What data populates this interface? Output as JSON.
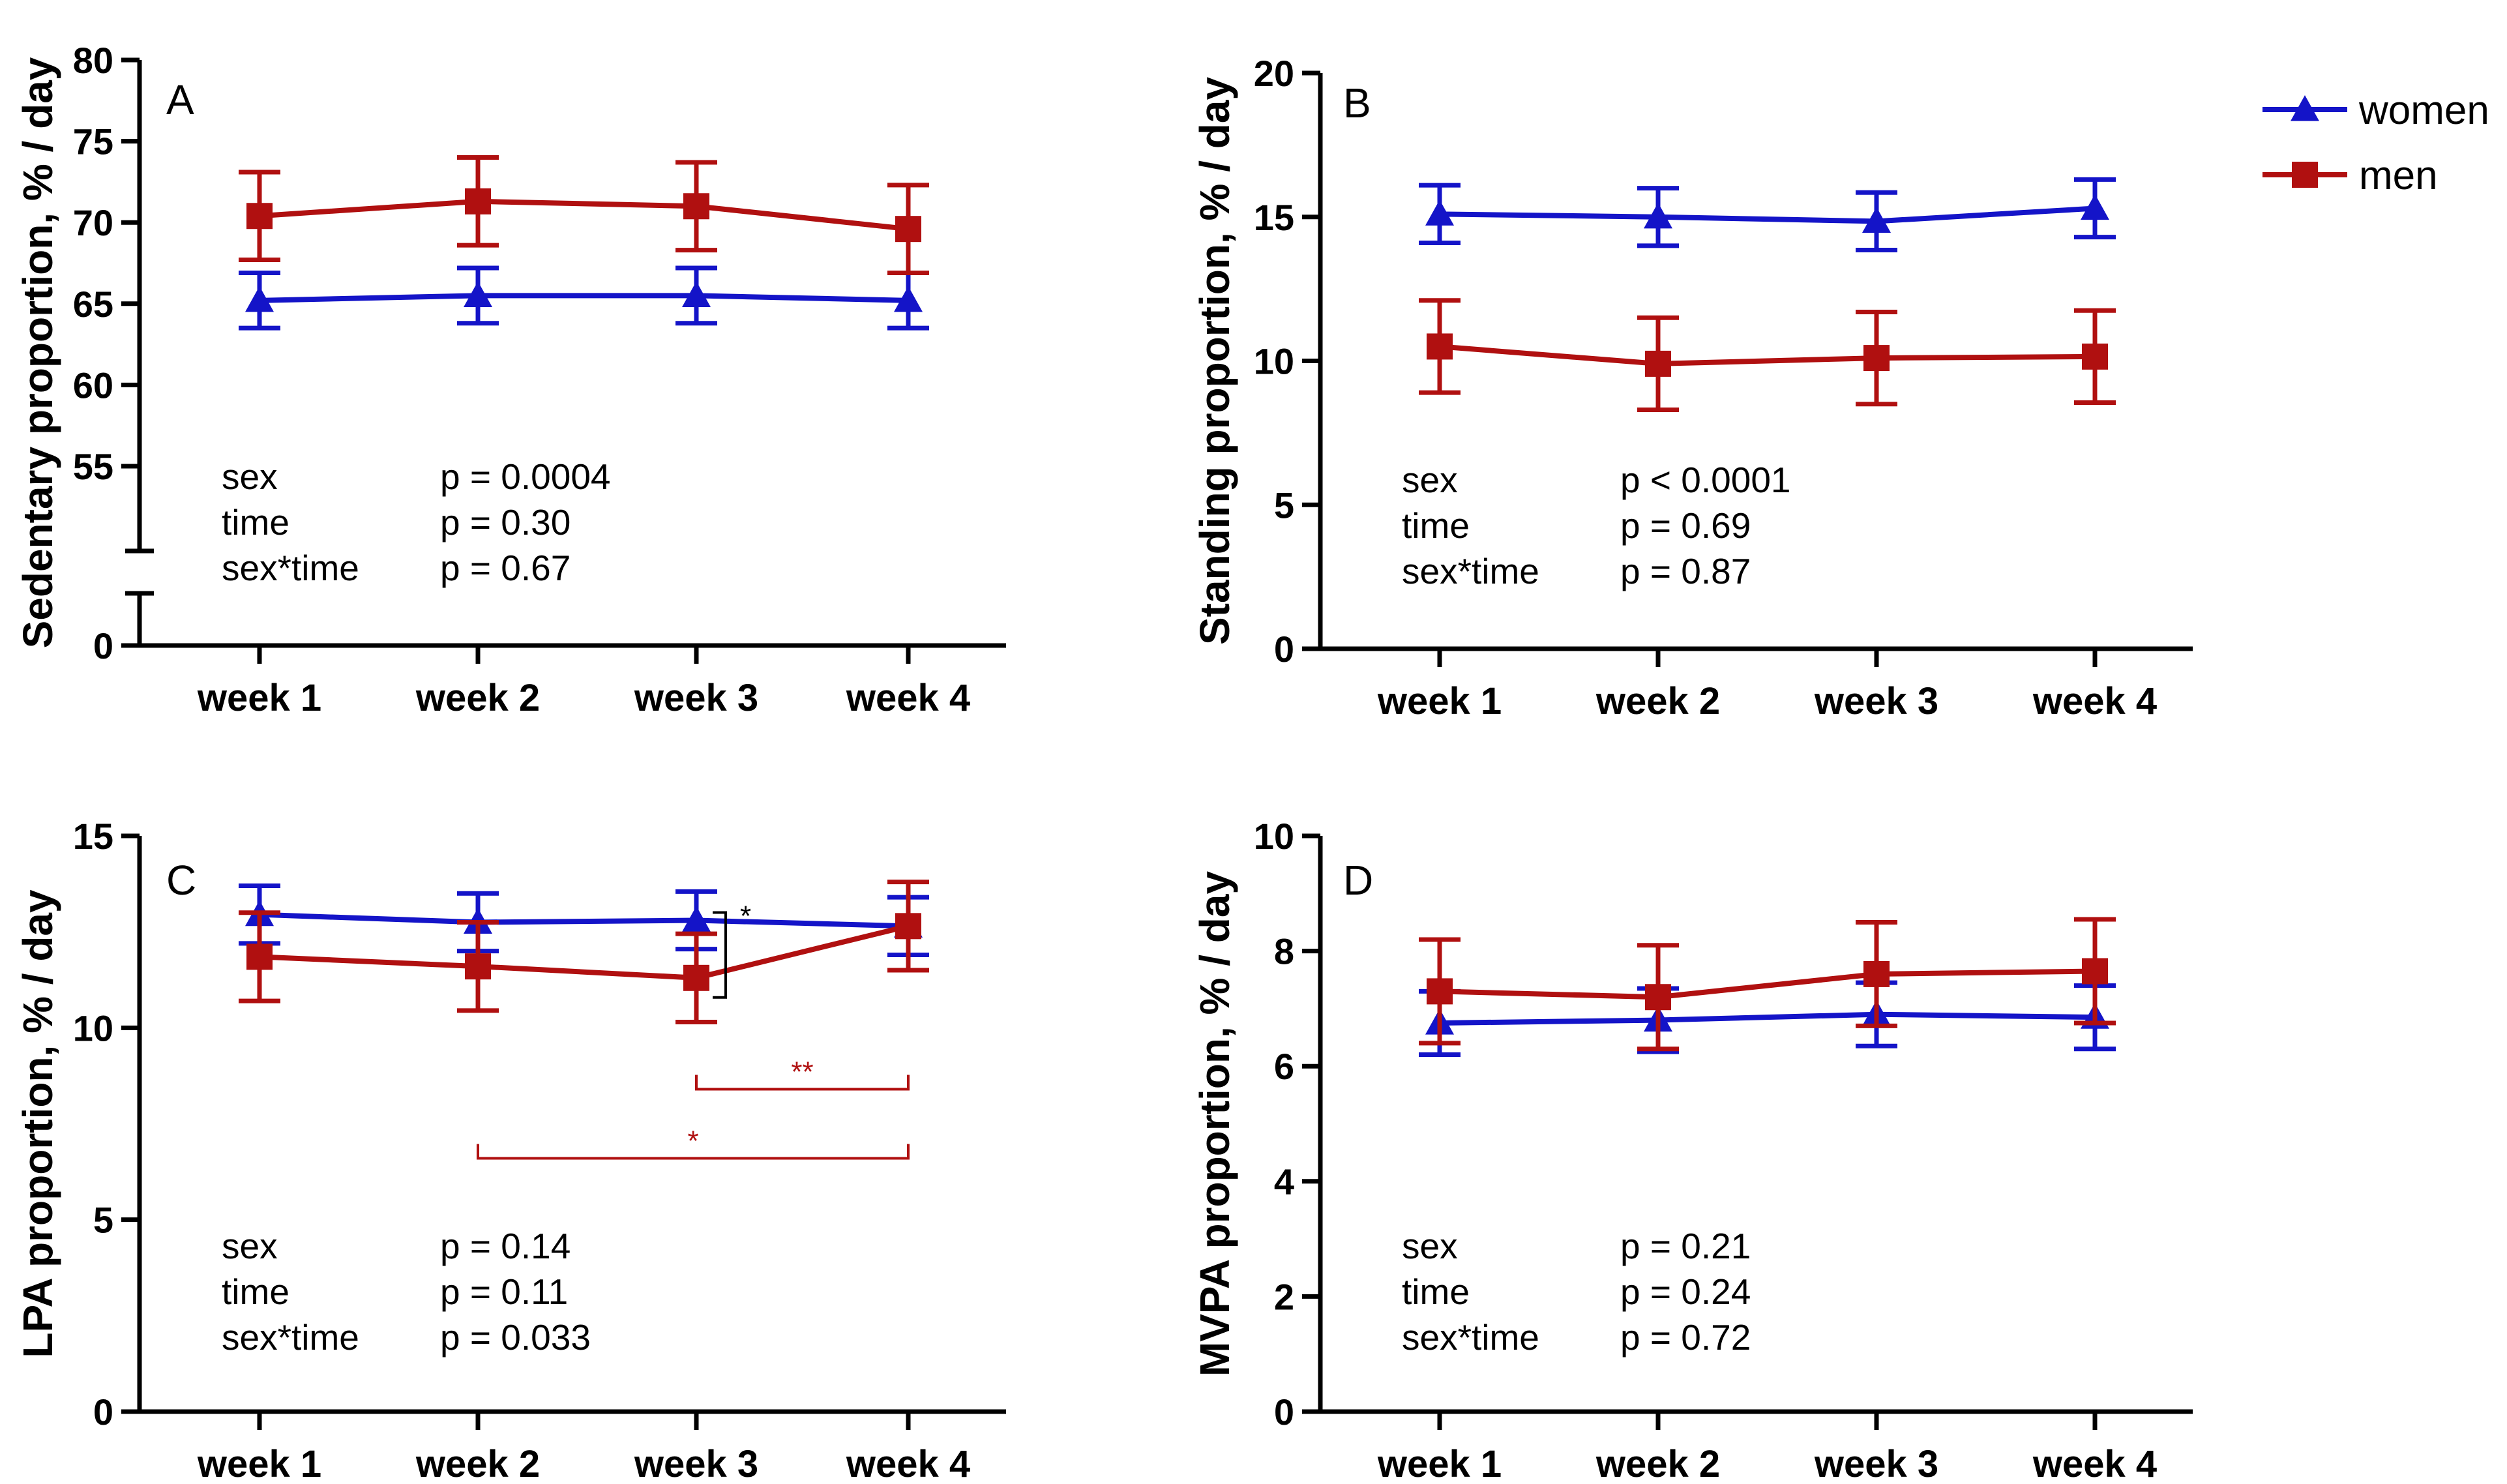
{
  "legend": [
    {
      "name": "women",
      "color": "#1414c8",
      "marker": "triangle"
    },
    {
      "name": "men",
      "color": "#b01010",
      "marker": "square"
    }
  ],
  "chart_data": [
    {
      "type": "line",
      "panel": "A",
      "ylabel": "Sedentary proportion, % / day",
      "categories": [
        "week 1",
        "week 2",
        "week 3",
        "week 4"
      ],
      "ylim": [
        50,
        80
      ],
      "axis_break": {
        "lower": [
          0
        ],
        "upper_start": 55
      },
      "yticks": [
        0,
        55,
        60,
        65,
        70,
        75,
        80
      ],
      "series": [
        {
          "name": "women",
          "values": [
            65.2,
            65.5,
            65.5,
            65.2
          ],
          "errors": [
            1.7,
            1.7,
            1.7,
            1.7
          ]
        },
        {
          "name": "men",
          "values": [
            70.4,
            71.3,
            71.0,
            69.6
          ],
          "errors": [
            2.7,
            2.7,
            2.7,
            2.7
          ]
        }
      ],
      "stats": [
        {
          "label": "sex",
          "value": "p = 0.0004"
        },
        {
          "label": "time",
          "value": "p = 0.30"
        },
        {
          "label": "sex*time",
          "value": "p = 0.67"
        }
      ]
    },
    {
      "type": "line",
      "panel": "B",
      "ylabel": "Standing proportion, % / day",
      "categories": [
        "week 1",
        "week 2",
        "week 3",
        "week 4"
      ],
      "ylim": [
        0,
        20
      ],
      "yticks": [
        0,
        5,
        10,
        15,
        20
      ],
      "series": [
        {
          "name": "women",
          "values": [
            15.1,
            15.0,
            14.85,
            15.3
          ],
          "errors": [
            1.0,
            1.0,
            1.0,
            1.0
          ]
        },
        {
          "name": "men",
          "values": [
            10.5,
            9.9,
            10.1,
            10.15
          ],
          "errors": [
            1.6,
            1.6,
            1.6,
            1.6
          ]
        }
      ],
      "stats": [
        {
          "label": "sex",
          "value": "p < 0.0001"
        },
        {
          "label": "time",
          "value": "p = 0.69"
        },
        {
          "label": "sex*time",
          "value": "p = 0.87"
        }
      ]
    },
    {
      "type": "line",
      "panel": "C",
      "ylabel": "LPA proportion, % / day",
      "categories": [
        "week 1",
        "week 2",
        "week 3",
        "week 4"
      ],
      "ylim": [
        0,
        15
      ],
      "yticks": [
        0,
        5,
        10,
        15
      ],
      "series": [
        {
          "name": "women",
          "values": [
            12.95,
            12.75,
            12.8,
            12.65
          ],
          "errors": [
            0.75,
            0.75,
            0.75,
            0.75
          ]
        },
        {
          "name": "men",
          "values": [
            11.85,
            11.6,
            11.3,
            12.65
          ],
          "errors": [
            1.15,
            1.15,
            1.15,
            1.15
          ]
        }
      ],
      "annotations": [
        {
          "text": "*",
          "type": "between-groups",
          "category": "week 3",
          "color": "#000000"
        },
        {
          "text": "**",
          "type": "within-men",
          "from": "week 3",
          "to": "week 4",
          "y": 8.4,
          "color": "#b01010"
        },
        {
          "text": "*",
          "type": "within-men",
          "from": "week 2",
          "to": "week 4",
          "y": 6.6,
          "color": "#b01010"
        }
      ],
      "stats": [
        {
          "label": "sex",
          "value": "p = 0.14"
        },
        {
          "label": "time",
          "value": "p = 0.11"
        },
        {
          "label": "sex*time",
          "value": "p = 0.033"
        }
      ]
    },
    {
      "type": "line",
      "panel": "D",
      "ylabel": "MVPA proportion, % / day",
      "categories": [
        "week 1",
        "week 2",
        "week 3",
        "week 4"
      ],
      "ylim": [
        0,
        10
      ],
      "yticks": [
        0,
        2,
        4,
        6,
        8,
        10
      ],
      "series": [
        {
          "name": "women",
          "values": [
            6.75,
            6.8,
            6.9,
            6.85
          ],
          "errors": [
            0.55,
            0.55,
            0.55,
            0.55
          ]
        },
        {
          "name": "men",
          "values": [
            7.3,
            7.2,
            7.6,
            7.65
          ],
          "errors": [
            0.9,
            0.9,
            0.9,
            0.9
          ]
        }
      ],
      "stats": [
        {
          "label": "sex",
          "value": "p = 0.21"
        },
        {
          "label": "time",
          "value": "p = 0.24"
        },
        {
          "label": "sex*time",
          "value": "p = 0.72"
        }
      ]
    }
  ]
}
